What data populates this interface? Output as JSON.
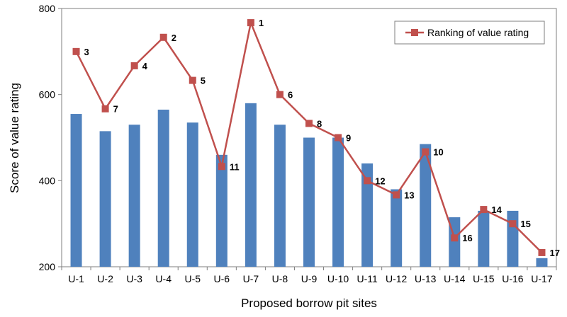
{
  "chart_data": {
    "type": "bar",
    "xlabel": "Proposed borrow pit sites",
    "ylabel": "Score of value rating",
    "ylim": [
      200,
      800
    ],
    "yticks": [
      200,
      400,
      600,
      800
    ],
    "grid": false,
    "legend_position": "top-right",
    "categories": [
      "U-1",
      "U-2",
      "U-3",
      "U-4",
      "U-5",
      "U-6",
      "U-7",
      "U-8",
      "U-9",
      "U-10",
      "U-11",
      "U-12",
      "U-13",
      "U-14",
      "U-15",
      "U-16",
      "U-17"
    ],
    "series": [
      {
        "type": "bar",
        "color": "#4f81bd",
        "values": [
          555,
          515,
          530,
          565,
          535,
          460,
          580,
          530,
          500,
          500,
          440,
          380,
          485,
          315,
          330,
          330,
          220
        ]
      },
      {
        "type": "line",
        "name": "Ranking of value rating",
        "color": "#c0504d",
        "values": [
          700,
          567,
          667,
          733,
          633,
          433,
          767,
          600,
          533,
          500,
          400,
          367,
          467,
          267,
          333,
          300,
          233
        ],
        "point_labels": [
          "3",
          "7",
          "4",
          "2",
          "5",
          "11",
          "1",
          "6",
          "8",
          "9",
          "12",
          "13",
          "10",
          "16",
          "14",
          "15",
          "17"
        ]
      }
    ]
  }
}
